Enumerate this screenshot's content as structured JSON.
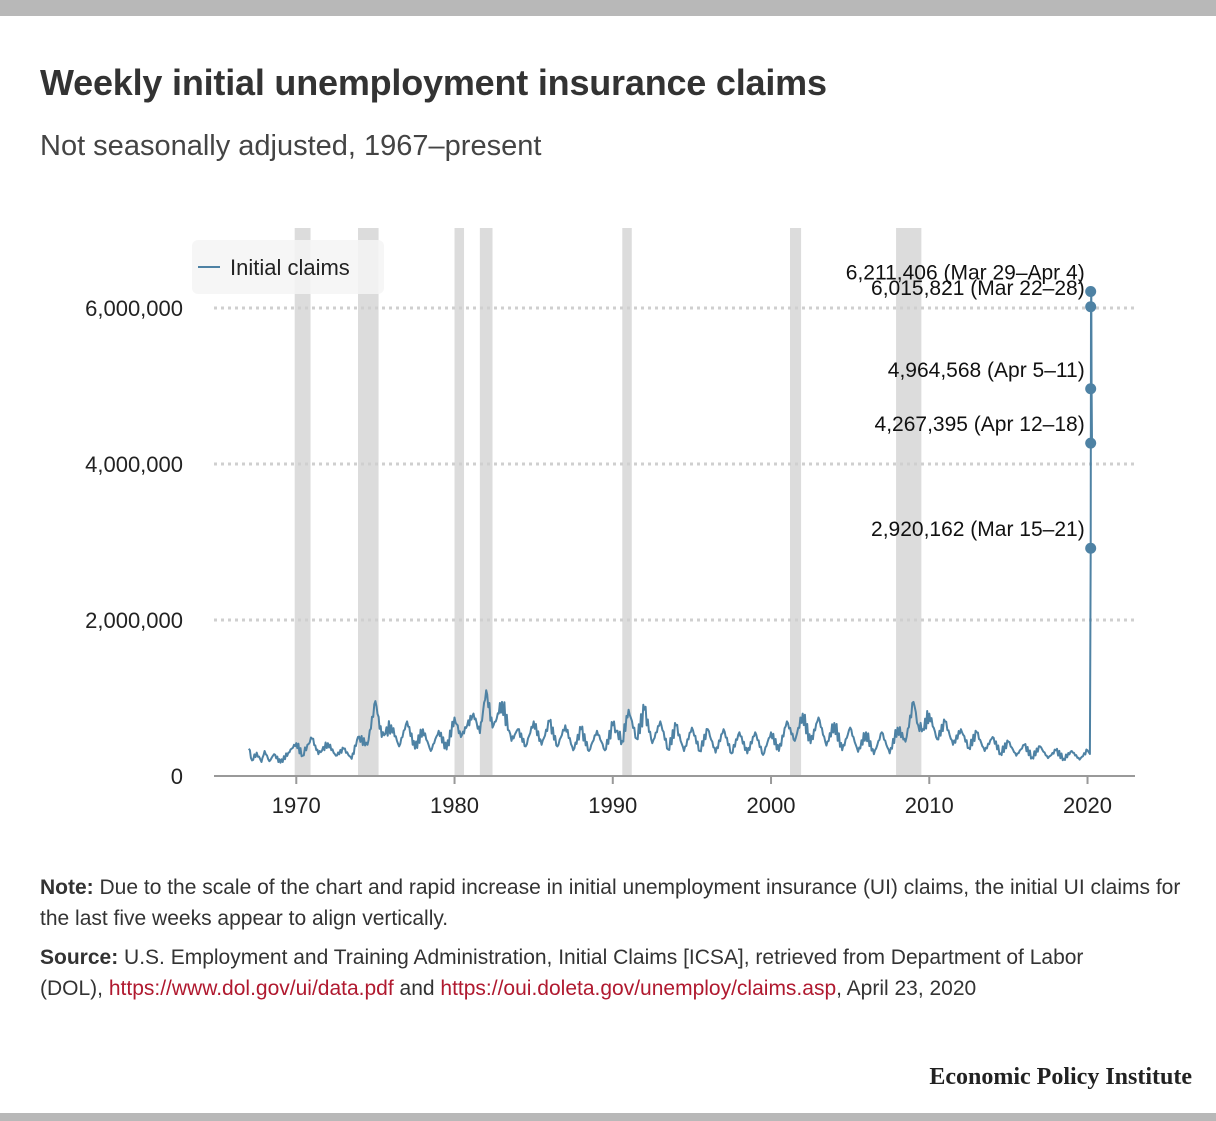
{
  "header": {
    "title": "Weekly initial unemployment insurance claims",
    "subtitle": "Not seasonally adjusted, 1967–present"
  },
  "chart_data": {
    "type": "line",
    "title": "Weekly initial unemployment insurance claims",
    "subtitle": "Not seasonally adjusted, 1967–present",
    "xlabel": "",
    "ylabel": "",
    "xlim": [
      1964.8,
      2023.0
    ],
    "ylim": [
      0,
      6500000
    ],
    "x_ticks": [
      1970,
      1980,
      1990,
      2000,
      2010,
      2020
    ],
    "x_tick_labels": [
      "1970",
      "1980",
      "1990",
      "2000",
      "2010",
      "2020"
    ],
    "y_ticks": [
      0,
      2000000,
      4000000,
      6000000
    ],
    "y_tick_labels": [
      "0",
      "2,000,000",
      "4,000,000",
      "6,000,000"
    ],
    "grid": "horizontal dotted",
    "legend": {
      "position": "top-left",
      "entries": [
        "Initial claims"
      ]
    },
    "colors": {
      "line": "#4e82a4",
      "recession": "#dcdcdc",
      "grid": "#cfcfcf",
      "axis": "#999999"
    },
    "recessions": [
      [
        1969.9,
        1970.9
      ],
      [
        1973.9,
        1975.2
      ],
      [
        1980.0,
        1980.6
      ],
      [
        1981.6,
        1982.4
      ],
      [
        1990.6,
        1991.2
      ],
      [
        2001.2,
        2001.9
      ],
      [
        2007.9,
        2009.5
      ]
    ],
    "series": [
      {
        "name": "Initial claims",
        "x": [
          1967.0,
          1967.2,
          1967.5,
          1967.8,
          1968.0,
          1968.3,
          1968.6,
          1969.0,
          1969.5,
          1970.0,
          1970.4,
          1970.7,
          1971.0,
          1971.4,
          1972.0,
          1972.5,
          1973.0,
          1973.5,
          1973.9,
          1974.5,
          1975.0,
          1975.4,
          1976.0,
          1976.5,
          1977.0,
          1977.5,
          1978.0,
          1978.5,
          1979.0,
          1979.5,
          1980.0,
          1980.4,
          1980.8,
          1981.2,
          1981.6,
          1982.0,
          1982.4,
          1982.8,
          1983.0,
          1983.6,
          1984.0,
          1984.5,
          1985.0,
          1985.5,
          1986.0,
          1986.5,
          1987.0,
          1987.5,
          1988.0,
          1988.5,
          1989.0,
          1989.5,
          1990.0,
          1990.6,
          1991.0,
          1991.5,
          1992.0,
          1992.5,
          1993.0,
          1993.5,
          1994.0,
          1994.5,
          1995.0,
          1995.5,
          1996.0,
          1996.5,
          1997.0,
          1997.5,
          1998.0,
          1998.5,
          1999.0,
          1999.5,
          2000.0,
          2000.5,
          2001.0,
          2001.5,
          2002.0,
          2002.5,
          2003.0,
          2003.5,
          2004.0,
          2004.5,
          2005.0,
          2005.5,
          2006.0,
          2006.5,
          2007.0,
          2007.5,
          2008.0,
          2008.5,
          2009.0,
          2009.3,
          2009.6,
          2010.0,
          2010.5,
          2011.0,
          2011.5,
          2012.0,
          2012.5,
          2013.0,
          2013.5,
          2014.0,
          2014.5,
          2015.0,
          2015.5,
          2016.0,
          2016.5,
          2017.0,
          2017.5,
          2018.0,
          2018.5,
          2019.0,
          2019.5,
          2020.0,
          2020.15,
          2020.2,
          2020.22,
          2020.24,
          2020.26,
          2020.28
        ],
        "values": [
          350000,
          200000,
          300000,
          180000,
          320000,
          190000,
          280000,
          170000,
          300000,
          420000,
          260000,
          400000,
          480000,
          280000,
          420000,
          260000,
          350000,
          220000,
          500000,
          400000,
          960000,
          500000,
          650000,
          380000,
          700000,
          350000,
          600000,
          320000,
          580000,
          340000,
          750000,
          500000,
          650000,
          800000,
          550000,
          1100000,
          620000,
          800000,
          950000,
          450000,
          600000,
          380000,
          700000,
          400000,
          700000,
          380000,
          650000,
          330000,
          600000,
          320000,
          580000,
          330000,
          650000,
          450000,
          850000,
          480000,
          850000,
          420000,
          700000,
          340000,
          650000,
          320000,
          620000,
          320000,
          600000,
          300000,
          600000,
          290000,
          560000,
          290000,
          560000,
          270000,
          560000,
          320000,
          700000,
          450000,
          800000,
          420000,
          750000,
          390000,
          680000,
          330000,
          620000,
          310000,
          560000,
          280000,
          560000,
          290000,
          620000,
          440000,
          950000,
          650000,
          600000,
          800000,
          470000,
          700000,
          400000,
          600000,
          360000,
          560000,
          320000,
          500000,
          290000,
          440000,
          260000,
          400000,
          240000,
          380000,
          230000,
          330000,
          220000,
          320000,
          210000,
          330000,
          282000,
          2920162,
          6015821,
          6211406,
          4964568,
          4267395
        ]
      }
    ],
    "annotations": [
      {
        "x": 2020.22,
        "value": 6211406,
        "label": "6,211,406 (Mar 29–Apr 4)"
      },
      {
        "x": 2020.2,
        "value": 6015821,
        "label": "6,015,821 (Mar 22–28)"
      },
      {
        "x": 2020.24,
        "value": 4964568,
        "label": "4,964,568 (Apr 5–11)"
      },
      {
        "x": 2020.26,
        "value": 4267395,
        "label": "4,267,395 (Apr 12–18)"
      },
      {
        "x": 2020.15,
        "value": 2920162,
        "label": "2,920,162 (Mar 15–21)"
      }
    ]
  },
  "notes": {
    "note_label": "Note:",
    "note_text": " Due to the scale of the chart and rapid increase in initial unemployment insurance (UI) claims, the initial UI claims for the last five weeks appear to align vertically.",
    "source_label": "Source:",
    "source_text_1": " U.S. Employment and Training Administration, Initial Claims [ICSA], retrieved from Department of Labor",
    "source_text_2": "(DOL), ",
    "link_1": "https://www.dol.gov/ui/data.pdf",
    "source_and": " and ",
    "link_2": "https://oui.doleta.gov/unemploy/claims.asp",
    "source_date": ", April 23, 2020"
  },
  "footer": {
    "brand": "Economic Policy Institute"
  }
}
